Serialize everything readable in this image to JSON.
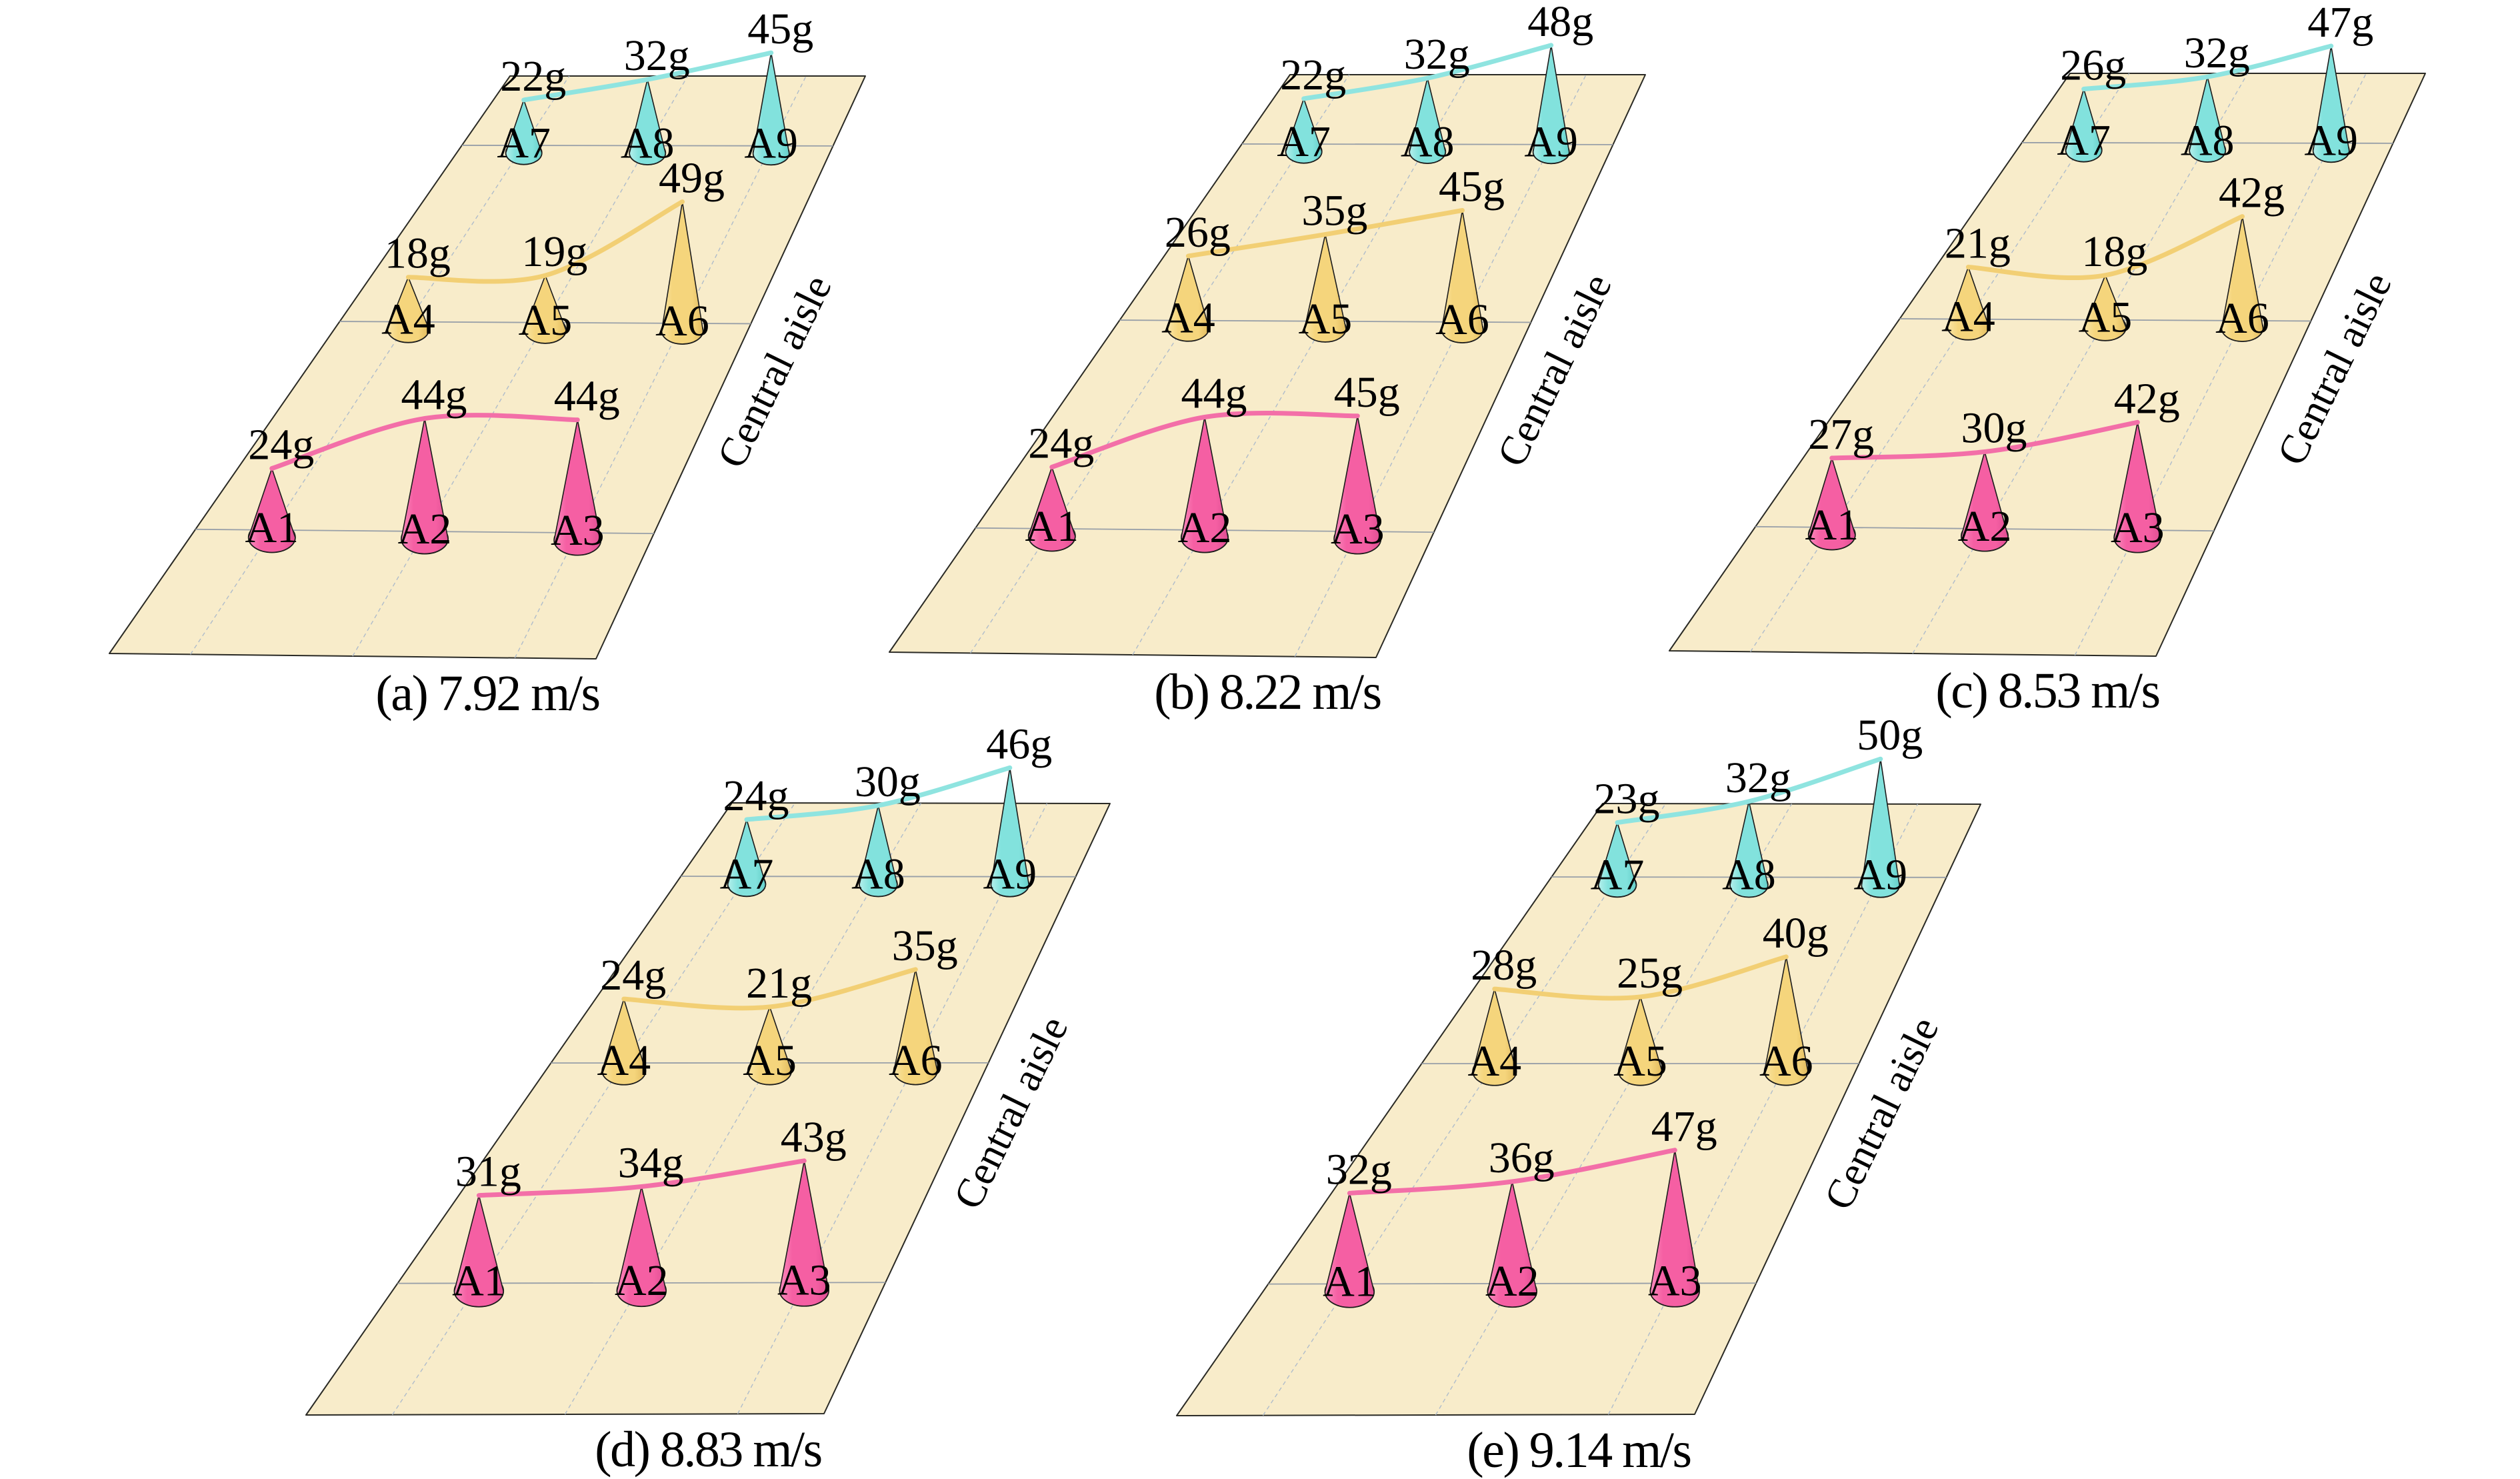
{
  "figure": {
    "unit": "g",
    "aisle_label": "Central aisle",
    "point_labels_by_row": [
      [
        "A1",
        "A2",
        "A3"
      ],
      [
        "A4",
        "A5",
        "A6"
      ],
      [
        "A7",
        "A8",
        "A9"
      ]
    ],
    "colors": {
      "background": "#ffffff",
      "plane_fill": "#f8ecca",
      "plane_edge": "#2a2a25",
      "row_grid_line": "#989fa8",
      "column_grid_line": "#afbccb",
      "text": "#000000",
      "front_row_cone": "#f55fa3",
      "front_row_cone_light": "#fa8cbe",
      "front_row_cone_dark": "#df4e92",
      "front_row_curve": "#f36fa8",
      "middle_row_cone": "#f5d57c",
      "middle_row_cone_light": "#f9e4a4",
      "middle_row_cone_dark": "#e2bb5e",
      "middle_row_curve": "#f2cf74",
      "back_row_cone": "#82e2dd",
      "back_row_cone_light": "#b4efeb",
      "back_row_cone_dark": "#65cfc9",
      "back_row_curve": "#8fe4e0"
    }
  },
  "chart_data": {
    "type": "bar",
    "variant": "3d-cone-on-floor-plane",
    "title": "",
    "xlabel": "",
    "ylabel": "",
    "unit": "g",
    "annotation_along_right_edge": "Central aisle",
    "legend_position": "none",
    "grid": "on",
    "categories": [
      "A1",
      "A2",
      "A3",
      "A4",
      "A5",
      "A6",
      "A7",
      "A8",
      "A9"
    ],
    "series_names": [
      "front row A1-A3 (pink)",
      "middle row A4-A6 (yellow)",
      "back row A7-A9 (cyan)"
    ],
    "subplots": [
      {
        "id": "a",
        "caption": "(a) 7.92 m/s",
        "air_speed": "7.92 m/s",
        "values_by_point": {
          "A1": 24,
          "A2": 44,
          "A3": 44,
          "A4": 18,
          "A5": 19,
          "A6": 49,
          "A7": 22,
          "A8": 32,
          "A9": 45
        },
        "rows": [
          [
            24,
            44,
            44
          ],
          [
            18,
            19,
            49
          ],
          [
            22,
            32,
            45
          ]
        ],
        "value_labels": [
          [
            "24g",
            "44g",
            "44g"
          ],
          [
            "18g",
            "19g",
            "49g"
          ],
          [
            "22g",
            "32g",
            "45g"
          ]
        ]
      },
      {
        "id": "b",
        "caption": "(b) 8.22 m/s",
        "air_speed": "8.22 m/s",
        "values_by_point": {
          "A1": 24,
          "A2": 44,
          "A3": 45,
          "A4": 26,
          "A5": 35,
          "A6": 45,
          "A7": 22,
          "A8": 32,
          "A9": 48
        },
        "rows": [
          [
            24,
            44,
            45
          ],
          [
            26,
            35,
            45
          ],
          [
            22,
            32,
            48
          ]
        ],
        "value_labels": [
          [
            "24g",
            "44g",
            "45g"
          ],
          [
            "26g",
            "35g",
            "45g"
          ],
          [
            "22g",
            "32g",
            "48g"
          ]
        ]
      },
      {
        "id": "c",
        "caption": "(c) 8.53 m/s",
        "air_speed": "8.53 m/s",
        "values_by_point": {
          "A1": 27,
          "A2": 30,
          "A3": 42,
          "A4": 21,
          "A5": 18,
          "A6": 42,
          "A7": 26,
          "A8": 32,
          "A9": 47
        },
        "rows": [
          [
            27,
            30,
            42
          ],
          [
            21,
            18,
            42
          ],
          [
            26,
            32,
            47
          ]
        ],
        "value_labels": [
          [
            "27g",
            "30g",
            "42g"
          ],
          [
            "21g",
            "18g",
            "42g"
          ],
          [
            "26g",
            "32g",
            "47g"
          ]
        ]
      },
      {
        "id": "d",
        "caption": "(d) 8.83 m/s",
        "air_speed": "8.83 m/s",
        "values_by_point": {
          "A1": 31,
          "A2": 34,
          "A3": 43,
          "A4": 24,
          "A5": 21,
          "A6": 35,
          "A7": 24,
          "A8": 30,
          "A9": 46
        },
        "rows": [
          [
            31,
            34,
            43
          ],
          [
            24,
            21,
            35
          ],
          [
            24,
            30,
            46
          ]
        ],
        "value_labels": [
          [
            "31g",
            "34g",
            "43g"
          ],
          [
            "24g",
            "21g",
            "35g"
          ],
          [
            "24g",
            "30g",
            "46g"
          ]
        ]
      },
      {
        "id": "e",
        "caption": "(e) 9.14 m/s",
        "air_speed": "9.14 m/s",
        "values_by_point": {
          "A1": 32,
          "A2": 36,
          "A3": 47,
          "A4": 28,
          "A5": 25,
          "A6": 40,
          "A7": 23,
          "A8": 32,
          "A9": 50
        },
        "rows": [
          [
            32,
            36,
            47
          ],
          [
            28,
            25,
            40
          ],
          [
            23,
            32,
            50
          ]
        ],
        "value_labels": [
          [
            "32g",
            "36g",
            "47g"
          ],
          [
            "28g",
            "25g",
            "40g"
          ],
          [
            "23g",
            "32g",
            "50g"
          ]
        ]
      }
    ]
  }
}
